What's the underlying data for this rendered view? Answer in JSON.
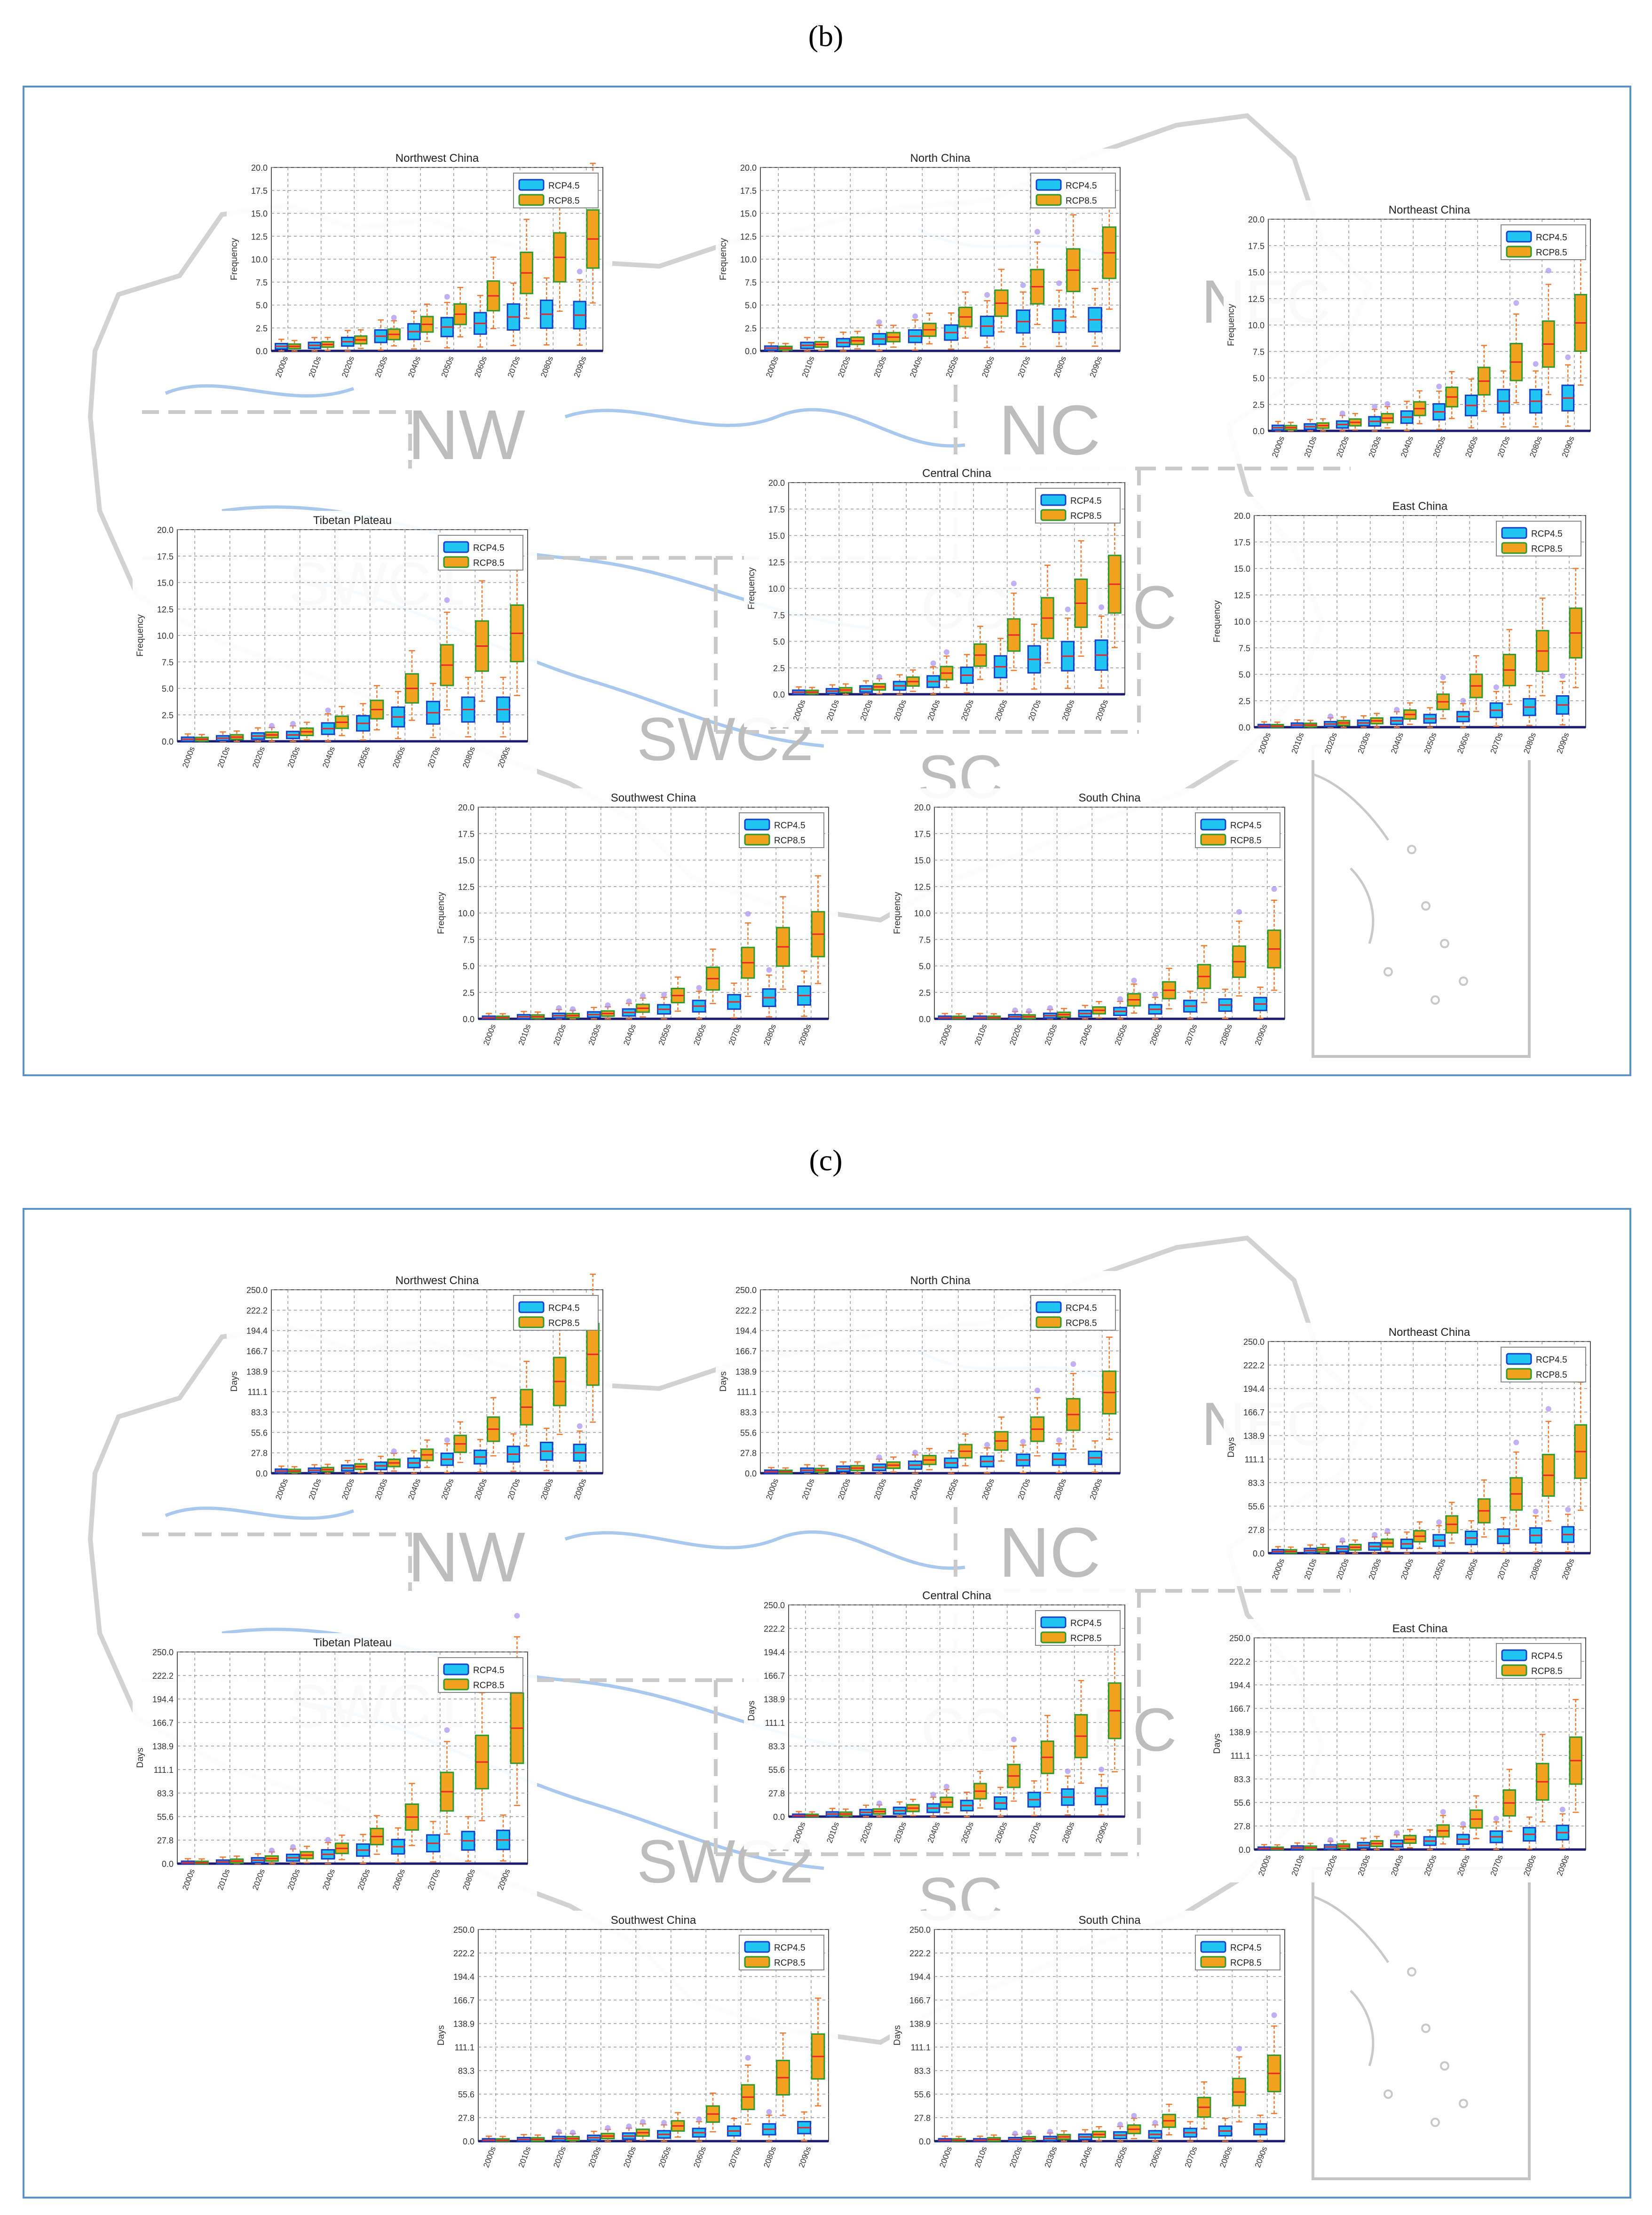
{
  "figure": {
    "panels": [
      {
        "id": "b",
        "letter": "(b)",
        "region_labels": [
          "NW",
          "NC",
          "NEC",
          "SWC1",
          "CC",
          "EC",
          "SWC2",
          "SC"
        ],
        "ylabel": "Frequency",
        "legend": [
          "RCP4.5",
          "RCP8.5"
        ],
        "yticks": [
          "0.0",
          "2.5",
          "5.0",
          "7.5",
          "10.0",
          "12.5",
          "15.0",
          "17.5",
          "20.0"
        ]
      },
      {
        "id": "c",
        "letter": "(c)",
        "region_labels": [
          "NW",
          "NC",
          "NEC",
          "SWC1",
          "CC",
          "EC",
          "SWC2",
          "SC"
        ],
        "ylabel": "Days",
        "legend": [
          "RCP4.5",
          "RCP8.5"
        ],
        "yticks": [
          "0.0",
          "27.8",
          "55.6",
          "83.3",
          "111.1",
          "138.9",
          "166.7",
          "194.4",
          "222.2",
          "250.0"
        ]
      }
    ],
    "colors": {
      "frame": "#5b93c8",
      "rcp45_fill": "#22c4f2",
      "rcp45_edge": "#1540c8",
      "rcp85_fill": "#f2a21e",
      "rcp85_edge": "#2e9a2e",
      "median": "#e8242a",
      "whisker": "#f07830",
      "outlier": "#a88ef0",
      "axis": "#1a1a6e",
      "map_outline": "#d2d2d2",
      "rivers": "#a9c8ee",
      "region_label": "#bdbdbd"
    }
  },
  "chart_data": [
    {
      "panel": "b",
      "type": "box",
      "title": "Northwest China",
      "ylabel": "Frequency",
      "ylim": [
        0,
        20
      ],
      "categories": [
        "2000s",
        "2010s",
        "2020s",
        "2030s",
        "2040s",
        "2050s",
        "2060s",
        "2070s",
        "2080s",
        "2090s"
      ],
      "series": [
        {
          "name": "RCP4.5",
          "medians": [
            0.5,
            0.6,
            1.0,
            1.6,
            2.1,
            2.6,
            3.0,
            3.7,
            4.0,
            3.9
          ]
        },
        {
          "name": "RCP8.5",
          "medians": [
            0.5,
            0.7,
            1.2,
            1.8,
            2.9,
            4.0,
            6.0,
            8.5,
            10.2,
            12.2
          ]
        }
      ]
    },
    {
      "panel": "b",
      "type": "box",
      "title": "North China",
      "ylabel": "Frequency",
      "ylim": [
        0,
        20
      ],
      "categories": [
        "2000s",
        "2010s",
        "2020s",
        "2030s",
        "2040s",
        "2050s",
        "2060s",
        "2070s",
        "2080s",
        "2090s"
      ],
      "series": [
        {
          "name": "RCP4.5",
          "medians": [
            0.3,
            0.6,
            0.9,
            1.3,
            1.6,
            2.0,
            2.7,
            3.2,
            3.3,
            3.4
          ]
        },
        {
          "name": "RCP8.5",
          "medians": [
            0.3,
            0.7,
            1.1,
            1.5,
            2.3,
            3.7,
            5.2,
            7.0,
            8.8,
            10.7
          ]
        }
      ]
    },
    {
      "panel": "b",
      "type": "box",
      "title": "Northeast China",
      "ylabel": "Frequency",
      "ylim": [
        0,
        20
      ],
      "categories": [
        "2000s",
        "2010s",
        "2020s",
        "2030s",
        "2040s",
        "2050s",
        "2060s",
        "2070s",
        "2080s",
        "2090s"
      ],
      "series": [
        {
          "name": "RCP4.5",
          "medians": [
            0.3,
            0.4,
            0.6,
            0.9,
            1.3,
            1.8,
            2.4,
            2.8,
            2.8,
            3.1
          ]
        },
        {
          "name": "RCP8.5",
          "medians": [
            0.3,
            0.5,
            0.8,
            1.2,
            2.1,
            3.2,
            4.7,
            6.5,
            8.2,
            10.2
          ]
        }
      ]
    },
    {
      "panel": "b",
      "type": "box",
      "title": "Tibetan Plateau",
      "ylabel": "Frequency",
      "ylim": [
        0,
        20
      ],
      "categories": [
        "2000s",
        "2010s",
        "2020s",
        "2030s",
        "2040s",
        "2050s",
        "2060s",
        "2070s",
        "2080s",
        "2090s"
      ],
      "series": [
        {
          "name": "RCP4.5",
          "medians": [
            0.2,
            0.3,
            0.5,
            0.6,
            1.2,
            1.7,
            2.3,
            2.7,
            3.0,
            3.0
          ]
        },
        {
          "name": "RCP8.5",
          "medians": [
            0.2,
            0.4,
            0.6,
            0.9,
            1.8,
            3.0,
            5.0,
            7.2,
            9.0,
            10.2
          ]
        }
      ]
    },
    {
      "panel": "b",
      "type": "box",
      "title": "Central China",
      "ylabel": "Frequency",
      "ylim": [
        0,
        20
      ],
      "categories": [
        "2000s",
        "2010s",
        "2020s",
        "2030s",
        "2040s",
        "2050s",
        "2060s",
        "2070s",
        "2080s",
        "2090s"
      ],
      "series": [
        {
          "name": "RCP4.5",
          "medians": [
            0.2,
            0.3,
            0.5,
            0.8,
            1.2,
            1.8,
            2.6,
            3.3,
            3.6,
            3.7
          ]
        },
        {
          "name": "RCP8.5",
          "medians": [
            0.2,
            0.4,
            0.7,
            1.2,
            2.0,
            3.7,
            5.6,
            7.2,
            8.6,
            10.4
          ]
        }
      ]
    },
    {
      "panel": "b",
      "type": "box",
      "title": "East China",
      "ylabel": "Frequency",
      "ylim": [
        0,
        20
      ],
      "categories": [
        "2000s",
        "2010s",
        "2020s",
        "2030s",
        "2040s",
        "2050s",
        "2060s",
        "2070s",
        "2080s",
        "2090s"
      ],
      "series": [
        {
          "name": "RCP4.5",
          "medians": [
            0.1,
            0.2,
            0.3,
            0.4,
            0.6,
            0.8,
            1.0,
            1.6,
            1.9,
            2.1
          ]
        },
        {
          "name": "RCP8.5",
          "medians": [
            0.1,
            0.2,
            0.4,
            0.6,
            1.2,
            2.4,
            3.9,
            5.4,
            7.2,
            8.9
          ]
        }
      ]
    },
    {
      "panel": "b",
      "type": "box",
      "title": "Southwest China",
      "ylabel": "Frequency",
      "ylim": [
        0,
        20
      ],
      "categories": [
        "2000s",
        "2010s",
        "2020s",
        "2030s",
        "2040s",
        "2050s",
        "2060s",
        "2070s",
        "2080s",
        "2090s"
      ],
      "series": [
        {
          "name": "RCP4.5",
          "medians": [
            0.1,
            0.2,
            0.3,
            0.4,
            0.6,
            0.9,
            1.2,
            1.6,
            2.0,
            2.2
          ]
        },
        {
          "name": "RCP8.5",
          "medians": [
            0.1,
            0.2,
            0.3,
            0.5,
            1.0,
            2.2,
            3.8,
            5.3,
            6.8,
            8.0
          ]
        }
      ]
    },
    {
      "panel": "b",
      "type": "box",
      "title": "South China",
      "ylabel": "Frequency",
      "ylim": [
        0,
        20
      ],
      "categories": [
        "2000s",
        "2010s",
        "2020s",
        "2030s",
        "2040s",
        "2050s",
        "2060s",
        "2070s",
        "2080s",
        "2090s"
      ],
      "series": [
        {
          "name": "RCP4.5",
          "medians": [
            0.1,
            0.1,
            0.2,
            0.3,
            0.5,
            0.7,
            0.9,
            1.2,
            1.3,
            1.4
          ]
        },
        {
          "name": "RCP8.5",
          "medians": [
            0.1,
            0.1,
            0.2,
            0.4,
            0.8,
            1.8,
            2.7,
            4.0,
            5.4,
            6.6
          ]
        }
      ]
    },
    {
      "panel": "c",
      "type": "box",
      "title": "Northwest China",
      "ylabel": "Days",
      "ylim": [
        0,
        250
      ],
      "categories": [
        "2000s",
        "2010s",
        "2020s",
        "2030s",
        "2040s",
        "2050s",
        "2060s",
        "2070s",
        "2080s",
        "2090s"
      ],
      "series": [
        {
          "name": "RCP4.5",
          "medians": [
            3,
            4,
            7,
            10,
            14,
            19,
            22,
            26,
            30,
            28
          ]
        },
        {
          "name": "RCP8.5",
          "medians": [
            3,
            5,
            9,
            14,
            25,
            40,
            60,
            90,
            125,
            162
          ]
        }
      ]
    },
    {
      "panel": "c",
      "type": "box",
      "title": "North China",
      "ylabel": "Days",
      "ylim": [
        0,
        250
      ],
      "categories": [
        "2000s",
        "2010s",
        "2020s",
        "2030s",
        "2040s",
        "2050s",
        "2060s",
        "2070s",
        "2080s",
        "2090s"
      ],
      "series": [
        {
          "name": "RCP4.5",
          "medians": [
            2,
            4,
            6,
            8,
            11,
            14,
            16,
            18,
            19,
            21
          ]
        },
        {
          "name": "RCP8.5",
          "medians": [
            2,
            4,
            7,
            11,
            18,
            30,
            44,
            60,
            80,
            110
          ]
        }
      ]
    },
    {
      "panel": "c",
      "type": "box",
      "title": "Northeast China",
      "ylabel": "Days",
      "ylim": [
        0,
        250
      ],
      "categories": [
        "2000s",
        "2010s",
        "2020s",
        "2030s",
        "2040s",
        "2050s",
        "2060s",
        "2070s",
        "2080s",
        "2090s"
      ],
      "series": [
        {
          "name": "RCP4.5",
          "medians": [
            2,
            3,
            5,
            8,
            11,
            15,
            18,
            20,
            21,
            22
          ]
        },
        {
          "name": "RCP8.5",
          "medians": [
            2,
            4,
            7,
            12,
            20,
            34,
            50,
            70,
            92,
            120
          ]
        }
      ]
    },
    {
      "panel": "c",
      "type": "box",
      "title": "Tibetan Plateau",
      "ylabel": "Days",
      "ylim": [
        0,
        250
      ],
      "categories": [
        "2000s",
        "2010s",
        "2020s",
        "2030s",
        "2040s",
        "2050s",
        "2060s",
        "2070s",
        "2080s",
        "2090s"
      ],
      "series": [
        {
          "name": "RCP4.5",
          "medians": [
            1,
            2,
            4,
            7,
            11,
            16,
            20,
            24,
            27,
            28
          ]
        },
        {
          "name": "RCP8.5",
          "medians": [
            1,
            3,
            6,
            10,
            18,
            32,
            55,
            85,
            120,
            160
          ]
        }
      ]
    },
    {
      "panel": "c",
      "type": "box",
      "title": "Central China",
      "ylabel": "Days",
      "ylim": [
        0,
        250
      ],
      "categories": [
        "2000s",
        "2010s",
        "2020s",
        "2030s",
        "2040s",
        "2050s",
        "2060s",
        "2070s",
        "2080s",
        "2090s"
      ],
      "series": [
        {
          "name": "RCP4.5",
          "medians": [
            1,
            3,
            5,
            7,
            10,
            13,
            16,
            20,
            23,
            24
          ]
        },
        {
          "name": "RCP8.5",
          "medians": [
            1,
            3,
            6,
            10,
            17,
            30,
            48,
            70,
            95,
            125
          ]
        }
      ]
    },
    {
      "panel": "c",
      "type": "box",
      "title": "East China",
      "ylabel": "Days",
      "ylim": [
        0,
        250
      ],
      "categories": [
        "2000s",
        "2010s",
        "2020s",
        "2030s",
        "2040s",
        "2050s",
        "2060s",
        "2070s",
        "2080s",
        "2090s"
      ],
      "series": [
        {
          "name": "RCP4.5",
          "medians": [
            1,
            2,
            3,
            5,
            7,
            10,
            12,
            15,
            18,
            20
          ]
        },
        {
          "name": "RCP8.5",
          "medians": [
            1,
            2,
            4,
            7,
            12,
            22,
            36,
            55,
            80,
            105
          ]
        }
      ]
    },
    {
      "panel": "c",
      "type": "box",
      "title": "Southwest China",
      "ylabel": "Days",
      "ylim": [
        0,
        250
      ],
      "categories": [
        "2000s",
        "2010s",
        "2020s",
        "2030s",
        "2040s",
        "2050s",
        "2060s",
        "2070s",
        "2080s",
        "2090s"
      ],
      "series": [
        {
          "name": "RCP4.5",
          "medians": [
            1,
            2,
            3,
            4,
            6,
            8,
            10,
            12,
            14,
            16
          ]
        },
        {
          "name": "RCP8.5",
          "medians": [
            1,
            2,
            3,
            6,
            10,
            18,
            32,
            52,
            75,
            100
          ]
        }
      ]
    },
    {
      "panel": "c",
      "type": "box",
      "title": "South China",
      "ylabel": "Days",
      "ylim": [
        0,
        250
      ],
      "categories": [
        "2000s",
        "2010s",
        "2020s",
        "2030s",
        "2040s",
        "2050s",
        "2060s",
        "2070s",
        "2080s",
        "2090s"
      ],
      "series": [
        {
          "name": "RCP4.5",
          "medians": [
            1,
            1,
            2,
            3,
            5,
            7,
            8,
            10,
            12,
            14
          ]
        },
        {
          "name": "RCP8.5",
          "medians": [
            1,
            2,
            3,
            5,
            8,
            14,
            24,
            40,
            58,
            80
          ]
        }
      ]
    }
  ]
}
